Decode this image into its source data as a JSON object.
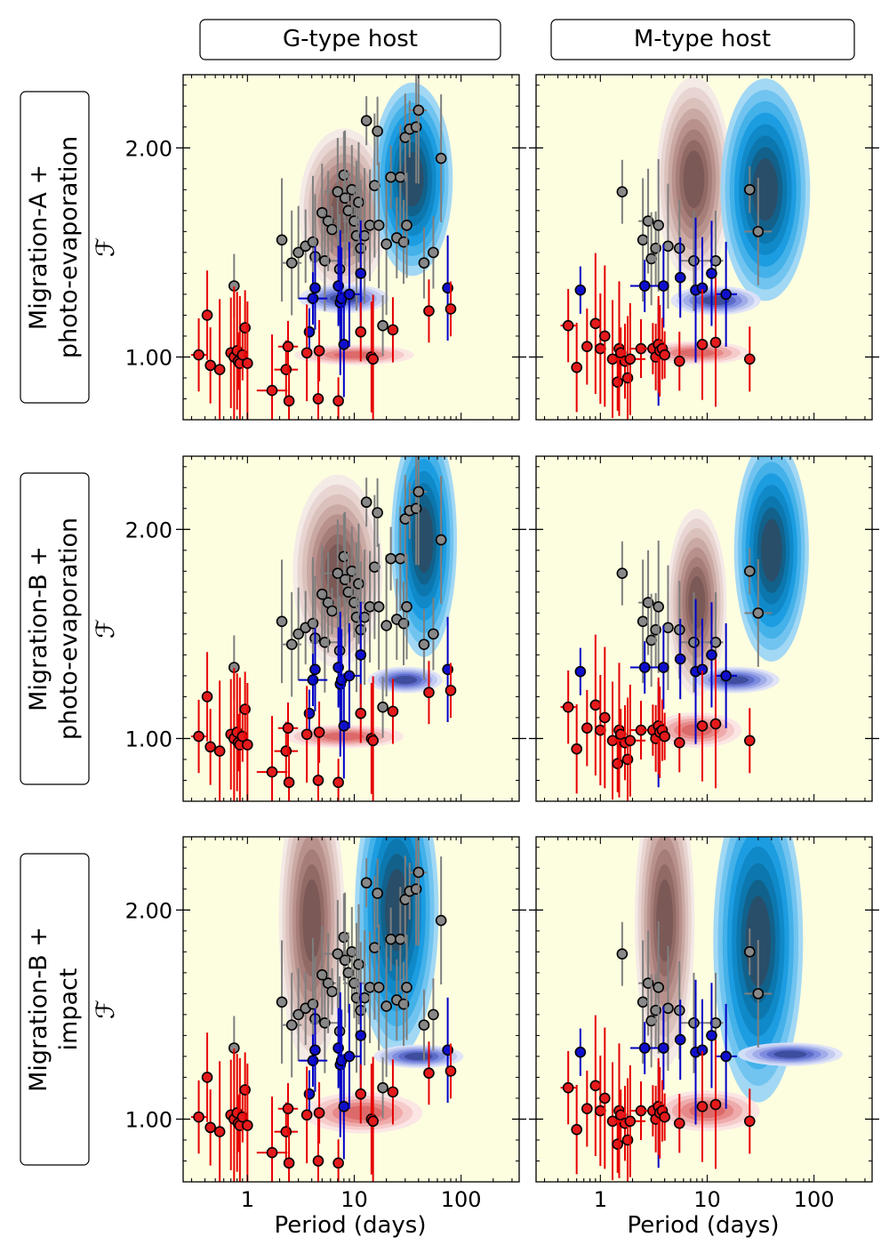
{
  "figure": {
    "column_headers": [
      "G-type host",
      "M-type host"
    ],
    "row_labels": [
      [
        "Migration-A +",
        "photo-evaporation"
      ],
      [
        "Migration-B +",
        "photo-evaporation"
      ],
      [
        "Migration-B +",
        "impact"
      ]
    ],
    "ylabel": "ℱ",
    "xlabel": "Period (days)",
    "xticks": [
      "1",
      "10",
      "100"
    ],
    "yticks": [
      "1.00",
      "2.00"
    ]
  },
  "chart_data": {
    "type": "scatter",
    "xscale": "log",
    "xlim": [
      0.25,
      350
    ],
    "ylim": [
      0.7,
      2.35
    ],
    "colors": {
      "background": "#fdfde0",
      "red": "#e41a1c",
      "red_error": "#e60000",
      "blue": "#1010cc",
      "blue_error": "#0000c8",
      "grey": "#888888",
      "grey_error": "#7f7f7f",
      "brown_contour": [
        "#f3e8e6",
        "#e6d3cf",
        "#d9bfba",
        "#c9a7a2",
        "#b78f8a",
        "#a47c77",
        "#8f6764",
        "#7a5856"
      ],
      "blue_contour": [
        "#9ad5f5",
        "#6cc2ef",
        "#40afe8",
        "#1a9be0",
        "#0f88c7",
        "#0c75ab",
        "#125f88",
        "#2b4d66"
      ],
      "pink_contour": [
        "#fbe4e4",
        "#f5c9c9",
        "#eea8a8",
        "#e58585",
        "#dc6767"
      ],
      "slate_contour": [
        "#dde2f7",
        "#c0c9f0",
        "#9eaae8",
        "#7b89de",
        "#5a69c7",
        "#3d4b9a"
      ]
    },
    "observations": {
      "G": {
        "red": [
          [
            0.35,
            1.01
          ],
          [
            0.42,
            1.2
          ],
          [
            0.45,
            0.96
          ],
          [
            0.55,
            0.94
          ],
          [
            0.7,
            1.02
          ],
          [
            0.75,
            1.0
          ],
          [
            0.8,
            1.03
          ],
          [
            0.82,
            0.98
          ],
          [
            0.85,
            0.97
          ],
          [
            0.9,
            1.01
          ],
          [
            0.95,
            1.14
          ],
          [
            1.0,
            0.97
          ],
          [
            1.7,
            0.84
          ],
          [
            2.3,
            0.94
          ],
          [
            2.4,
            1.05
          ],
          [
            2.45,
            0.79
          ],
          [
            3.6,
            1.02
          ],
          [
            4.6,
            0.8
          ],
          [
            4.7,
            1.03
          ],
          [
            7.1,
            0.79
          ],
          [
            11.5,
            1.12
          ],
          [
            14.5,
            1.0
          ],
          [
            15.0,
            0.99
          ],
          [
            23.0,
            1.13
          ],
          [
            50.0,
            1.22
          ],
          [
            80.0,
            1.23
          ]
        ],
        "blue": [
          [
            3.8,
            1.12
          ],
          [
            4.1,
            1.28
          ],
          [
            4.3,
            1.33
          ],
          [
            7.1,
            1.34
          ],
          [
            7.4,
            1.26
          ],
          [
            7.6,
            1.28
          ],
          [
            8.0,
            1.06
          ],
          [
            9.0,
            1.3
          ],
          [
            11.5,
            1.4
          ],
          [
            75.0,
            1.33
          ]
        ],
        "grey": [
          [
            0.75,
            1.34
          ],
          [
            2.1,
            1.56
          ],
          [
            2.6,
            1.45
          ],
          [
            3.0,
            1.5
          ],
          [
            3.5,
            1.53
          ],
          [
            4.1,
            1.55
          ],
          [
            4.3,
            1.48
          ],
          [
            5.0,
            1.69
          ],
          [
            5.3,
            1.46
          ],
          [
            5.7,
            1.65
          ],
          [
            6.2,
            1.61
          ],
          [
            7.0,
            1.79
          ],
          [
            7.3,
            1.42
          ],
          [
            8.0,
            1.87
          ],
          [
            8.2,
            1.76
          ],
          [
            8.8,
            1.7
          ],
          [
            9.5,
            1.8
          ],
          [
            10.0,
            1.65
          ],
          [
            10.5,
            1.58
          ],
          [
            11.0,
            1.74
          ],
          [
            11.5,
            1.52
          ],
          [
            12.5,
            1.58
          ],
          [
            13.0,
            2.13
          ],
          [
            14.0,
            1.63
          ],
          [
            15.5,
            1.82
          ],
          [
            16.5,
            2.08
          ],
          [
            17.0,
            1.63
          ],
          [
            18.5,
            1.15
          ],
          [
            20.0,
            1.54
          ],
          [
            22.0,
            1.86
          ],
          [
            25.0,
            1.57
          ],
          [
            27.0,
            1.86
          ],
          [
            29.0,
            1.55
          ],
          [
            30.0,
            2.05
          ],
          [
            31.0,
            1.63
          ],
          [
            33.0,
            2.09
          ],
          [
            38.0,
            2.1
          ],
          [
            40.0,
            2.18
          ],
          [
            45.0,
            1.45
          ],
          [
            55.0,
            1.5
          ],
          [
            65.0,
            1.95
          ]
        ]
      },
      "M": {
        "red": [
          [
            0.5,
            1.15
          ],
          [
            0.6,
            0.95
          ],
          [
            0.75,
            1.05
          ],
          [
            0.9,
            1.16
          ],
          [
            1.0,
            1.04
          ],
          [
            1.1,
            1.1
          ],
          [
            1.3,
            0.99
          ],
          [
            1.45,
            0.88
          ],
          [
            1.5,
            1.04
          ],
          [
            1.55,
            1.02
          ],
          [
            1.7,
            0.98
          ],
          [
            1.8,
            0.9
          ],
          [
            1.9,
            0.99
          ],
          [
            2.4,
            1.04
          ],
          [
            3.1,
            1.04
          ],
          [
            3.3,
            1.0
          ],
          [
            3.5,
            1.06
          ],
          [
            3.6,
            1.03
          ],
          [
            3.8,
            1.04
          ],
          [
            4.0,
            1.01
          ],
          [
            5.5,
            0.98
          ],
          [
            9.0,
            1.06
          ],
          [
            12.0,
            1.07
          ],
          [
            25.0,
            0.99
          ]
        ],
        "blue": [
          [
            0.65,
            1.32
          ],
          [
            2.6,
            1.34
          ],
          [
            3.9,
            1.34
          ],
          [
            5.6,
            1.38
          ],
          [
            7.8,
            1.32
          ],
          [
            9.0,
            1.33
          ],
          [
            11.0,
            1.4
          ],
          [
            15.0,
            1.3
          ],
          [
            3.5,
            1.02
          ]
        ],
        "grey": [
          [
            1.6,
            1.79
          ],
          [
            2.5,
            1.56
          ],
          [
            2.8,
            1.65
          ],
          [
            3.0,
            1.47
          ],
          [
            3.3,
            1.52
          ],
          [
            3.5,
            1.63
          ],
          [
            4.3,
            1.53
          ],
          [
            5.5,
            1.52
          ],
          [
            7.5,
            1.46
          ],
          [
            12.0,
            1.46
          ],
          [
            25.0,
            1.8
          ],
          [
            30.0,
            1.6
          ]
        ]
      }
    },
    "panels": [
      {
        "row": "Migration-A + photo-evaporation",
        "host": "G-type host",
        "densities": [
          {
            "color": "brown",
            "center": [
              8.0,
              1.7
            ],
            "spread_logx": 0.3,
            "spread_y": 0.28
          },
          {
            "color": "blue",
            "center": [
              35.0,
              1.85
            ],
            "spread_logx": 0.27,
            "spread_y": 0.33
          },
          {
            "color": "slate",
            "center": [
              8.0,
              1.28
            ],
            "spread_logx": 0.3,
            "spread_y": 0.05
          },
          {
            "color": "pink",
            "center": [
              10.0,
              1.01
            ],
            "spread_logx": 0.4,
            "spread_y": 0.035
          }
        ]
      },
      {
        "row": "Migration-A + photo-evaporation",
        "host": "M-type host",
        "densities": [
          {
            "color": "brown",
            "center": [
              7.5,
              1.85
            ],
            "spread_logx": 0.25,
            "spread_y": 0.35
          },
          {
            "color": "blue",
            "center": [
              35.0,
              1.8
            ],
            "spread_logx": 0.3,
            "spread_y": 0.38
          },
          {
            "color": "slate",
            "center": [
              12.0,
              1.27
            ],
            "spread_logx": 0.3,
            "spread_y": 0.05
          },
          {
            "color": "pink",
            "center": [
              8.0,
              1.02
            ],
            "spread_logx": 0.35,
            "spread_y": 0.04
          }
        ]
      },
      {
        "row": "Migration-B + photo-evaporation",
        "host": "G-type host",
        "densities": [
          {
            "color": "brown",
            "center": [
              7.0,
              1.8
            ],
            "spread_logx": 0.3,
            "spread_y": 0.33
          },
          {
            "color": "blue",
            "center": [
              45.0,
              1.95
            ],
            "spread_logx": 0.22,
            "spread_y": 0.4
          },
          {
            "color": "slate",
            "center": [
              30.0,
              1.28
            ],
            "spread_logx": 0.25,
            "spread_y": 0.045
          },
          {
            "color": "pink",
            "center": [
              8.0,
              1.01
            ],
            "spread_logx": 0.4,
            "spread_y": 0.04
          }
        ]
      },
      {
        "row": "Migration-B + photo-evaporation",
        "host": "M-type host",
        "densities": [
          {
            "color": "brown",
            "center": [
              8.0,
              1.65
            ],
            "spread_logx": 0.2,
            "spread_y": 0.32
          },
          {
            "color": "blue",
            "center": [
              40.0,
              1.9
            ],
            "spread_logx": 0.25,
            "spread_y": 0.38
          },
          {
            "color": "slate",
            "center": [
              18.0,
              1.28
            ],
            "spread_logx": 0.3,
            "spread_y": 0.045
          },
          {
            "color": "pink",
            "center": [
              8.0,
              1.04
            ],
            "spread_logx": 0.3,
            "spread_y": 0.06
          }
        ]
      },
      {
        "row": "Migration-B + impact",
        "host": "G-type host",
        "densities": [
          {
            "color": "brown",
            "center": [
              4.0,
              1.95
            ],
            "spread_logx": 0.22,
            "spread_y": 0.5
          },
          {
            "color": "blue",
            "center": [
              25.0,
              2.0
            ],
            "spread_logx": 0.28,
            "spread_y": 0.5
          },
          {
            "color": "slate",
            "center": [
              40.0,
              1.3
            ],
            "spread_logx": 0.3,
            "spread_y": 0.04
          },
          {
            "color": "pink",
            "center": [
              12.0,
              1.03
            ],
            "spread_logx": 0.4,
            "spread_y": 0.07
          }
        ]
      },
      {
        "row": "Migration-B + impact",
        "host": "M-type host",
        "densities": [
          {
            "color": "brown",
            "center": [
              4.0,
              1.95
            ],
            "spread_logx": 0.2,
            "spread_y": 0.5
          },
          {
            "color": "blue",
            "center": [
              30.0,
              1.85
            ],
            "spread_logx": 0.3,
            "spread_y": 0.55
          },
          {
            "color": "slate",
            "center": [
              60.0,
              1.31
            ],
            "spread_logx": 0.35,
            "spread_y": 0.04
          },
          {
            "color": "pink",
            "center": [
              10.0,
              1.04
            ],
            "spread_logx": 0.35,
            "spread_y": 0.07
          }
        ]
      }
    ]
  }
}
